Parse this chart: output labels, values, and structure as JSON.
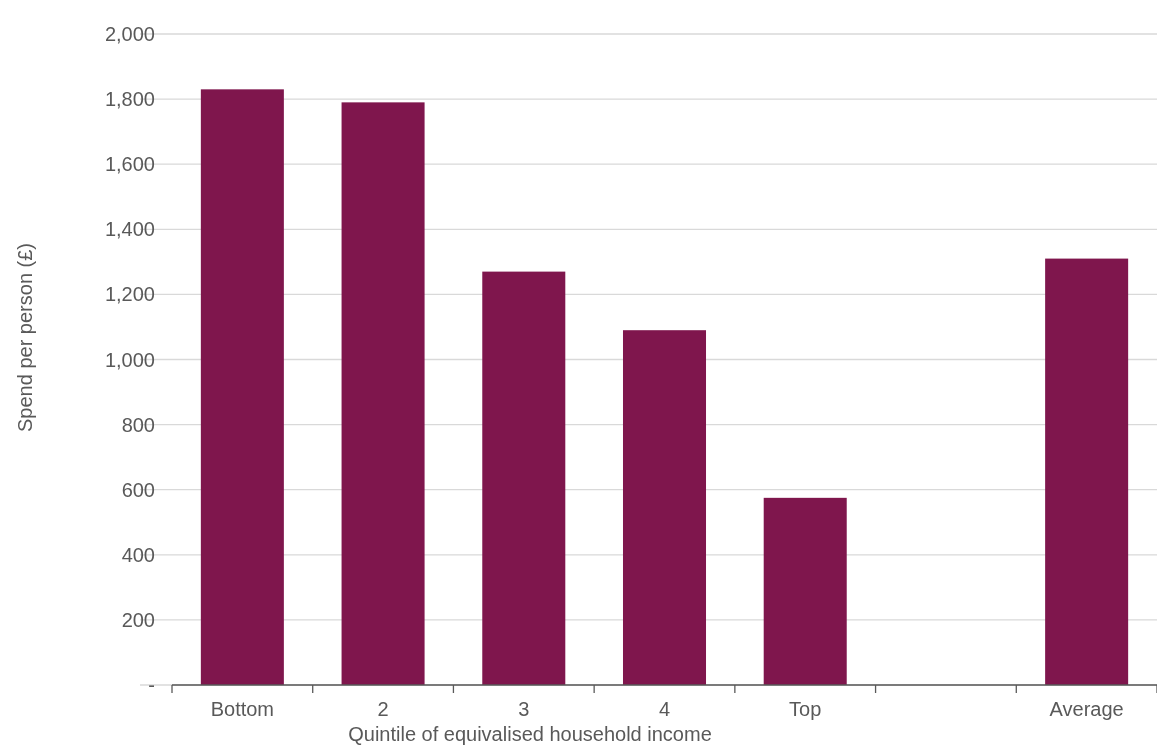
{
  "chart_data": {
    "type": "bar",
    "xlabel": "Quintile of equivalised household income",
    "ylabel": "Spend per person (£)",
    "categories": [
      "Bottom",
      "2",
      "3",
      "4",
      "Top",
      null,
      "Average"
    ],
    "values": [
      1830,
      1790,
      1270,
      1090,
      575,
      null,
      1310
    ],
    "color": "#7f164d",
    "ylim": [
      0,
      2000
    ],
    "yticks": [
      {
        "value": 0,
        "label": "-"
      },
      {
        "value": 200,
        "label": "200"
      },
      {
        "value": 400,
        "label": "400"
      },
      {
        "value": 600,
        "label": "600"
      },
      {
        "value": 800,
        "label": "800"
      },
      {
        "value": 1000,
        "label": "1,000"
      },
      {
        "value": 1200,
        "label": "1,200"
      },
      {
        "value": 1400,
        "label": "1,400"
      },
      {
        "value": 1600,
        "label": "1,600"
      },
      {
        "value": 1800,
        "label": "1,800"
      },
      {
        "value": 2000,
        "label": "2,000"
      }
    ],
    "grid": "y"
  }
}
